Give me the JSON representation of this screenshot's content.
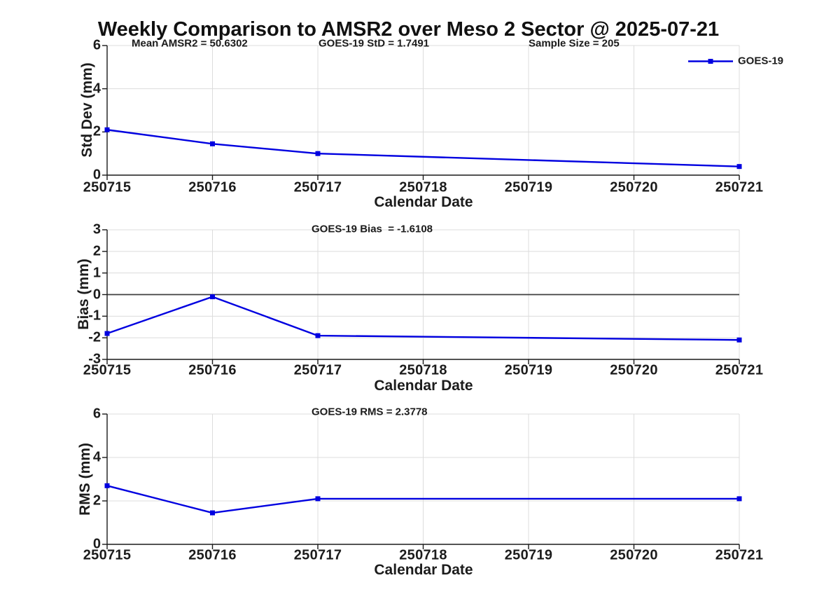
{
  "title": "Weekly Comparison to AMSR2 over Meso 2 Sector @ 2025-07-21",
  "legend": {
    "label": "GOES-19"
  },
  "colors": {
    "series_blue": "#0000e0",
    "axis": "#1a1a1a",
    "grid": "#dcdcdc",
    "zero_line": "#3f3f3f",
    "text": "#1c1c1c",
    "background": "#ffffff"
  },
  "x_axis": {
    "label": "Calendar Date",
    "tick_labels": [
      "250715",
      "250716",
      "250717",
      "250718",
      "250719",
      "250720",
      "250721"
    ],
    "range": [
      250715,
      250721
    ]
  },
  "chart_data": [
    {
      "type": "line",
      "panel": "std-dev",
      "ylabel": "Std Dev (mm)",
      "xlabel": "Calendar Date",
      "ylim": [
        0,
        6
      ],
      "yticks": [
        0,
        2,
        4,
        6
      ],
      "x": [
        250715,
        250716,
        250717,
        250721
      ],
      "series": [
        {
          "name": "GOES-19",
          "values": [
            2.1,
            1.45,
            1.0,
            0.4
          ]
        }
      ],
      "annotations": [
        {
          "text": "Mean AMSR2 = 50.6302"
        },
        {
          "text": "GOES-19 StD = 1.7491"
        },
        {
          "text": "Sample Size = 205"
        }
      ],
      "grid": true,
      "legend_position": "top-right"
    },
    {
      "type": "line",
      "panel": "bias",
      "ylabel": "Bias (mm)",
      "xlabel": "Calendar Date",
      "ylim": [
        -3,
        3
      ],
      "yticks": [
        -3,
        -2,
        -1,
        0,
        1,
        2,
        3
      ],
      "x": [
        250715,
        250716,
        250717,
        250721
      ],
      "series": [
        {
          "name": "GOES-19",
          "values": [
            -1.8,
            -0.1,
            -1.9,
            -2.1
          ]
        }
      ],
      "annotations": [
        {
          "text": "GOES-19 Bias  = -1.6108"
        }
      ],
      "grid": true,
      "zero_line": true
    },
    {
      "type": "line",
      "panel": "rms",
      "ylabel": "RMS (mm)",
      "xlabel": "Calendar Date",
      "ylim": [
        0,
        6
      ],
      "yticks": [
        0,
        2,
        4,
        6
      ],
      "x": [
        250715,
        250716,
        250717,
        250721
      ],
      "series": [
        {
          "name": "GOES-19",
          "values": [
            2.7,
            1.45,
            2.1,
            2.1
          ]
        }
      ],
      "annotations": [
        {
          "text": "GOES-19 RMS = 2.3778"
        }
      ],
      "grid": true
    }
  ]
}
